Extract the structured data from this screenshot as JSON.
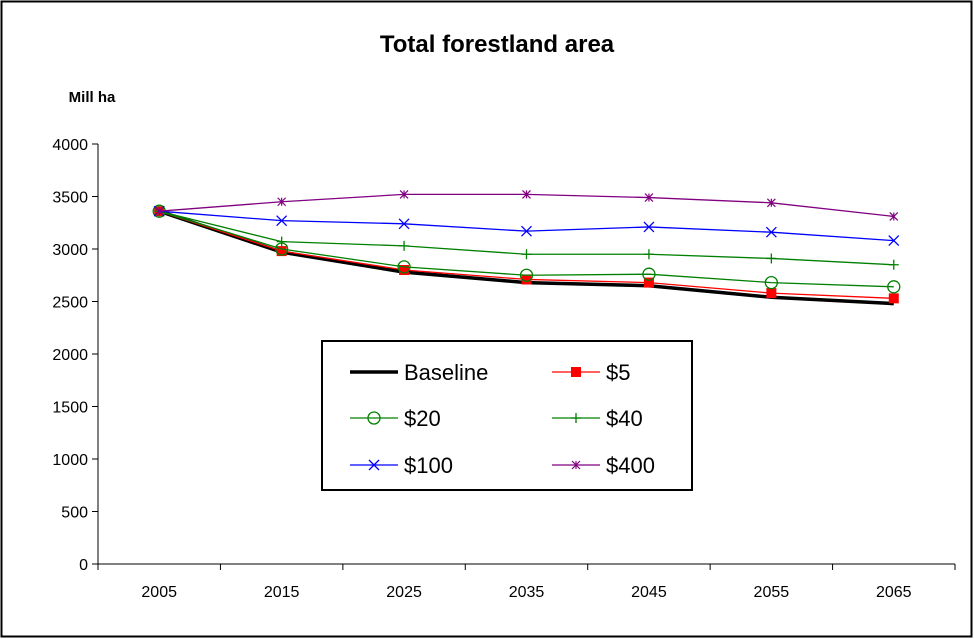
{
  "chart_data": {
    "type": "line",
    "title": "Total forestland area",
    "ylabel": "Mill ha",
    "xlabel": "",
    "ylim": [
      0,
      4000
    ],
    "yticks": [
      0,
      500,
      1000,
      1500,
      2000,
      2500,
      3000,
      3500,
      4000
    ],
    "categories": [
      "2005",
      "2015",
      "2025",
      "2035",
      "2045",
      "2055",
      "2065"
    ],
    "legend_position": "center",
    "grid": false,
    "series": [
      {
        "name": "Baseline",
        "color": "#000000",
        "marker": "none",
        "values": [
          3360,
          2970,
          2780,
          2680,
          2650,
          2540,
          2480
        ]
      },
      {
        "name": "$5",
        "color": "#ff0000",
        "marker": "square",
        "values": [
          3360,
          2980,
          2800,
          2710,
          2680,
          2580,
          2530
        ]
      },
      {
        "name": "$20",
        "color": "#008000",
        "marker": "circle",
        "values": [
          3360,
          3000,
          2830,
          2750,
          2760,
          2680,
          2640
        ]
      },
      {
        "name": "$40",
        "color": "#008000",
        "marker": "plus",
        "values": [
          3360,
          3070,
          3030,
          2950,
          2950,
          2910,
          2850
        ]
      },
      {
        "name": "$100",
        "color": "#0000ff",
        "marker": "x",
        "values": [
          3360,
          3270,
          3240,
          3170,
          3210,
          3160,
          3080
        ]
      },
      {
        "name": "$400",
        "color": "#800080",
        "marker": "star",
        "values": [
          3360,
          3450,
          3520,
          3520,
          3490,
          3440,
          3310
        ]
      }
    ]
  }
}
